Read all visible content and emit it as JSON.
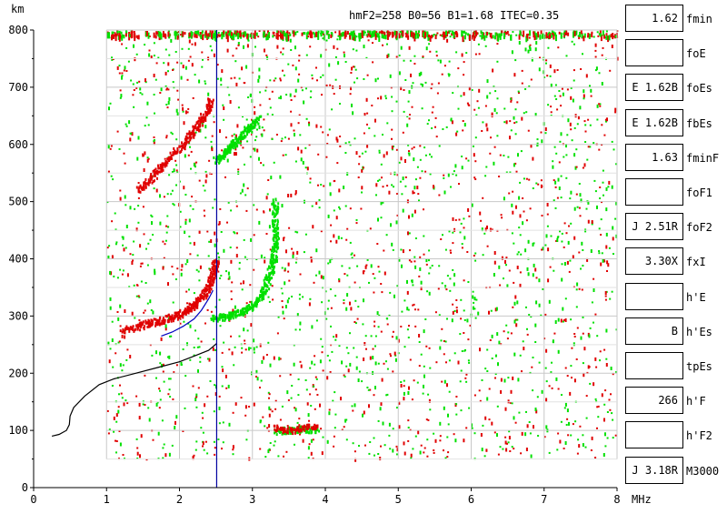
{
  "chart_data": {
    "type": "scatter",
    "title": "hmF2=258  B0=56  B1=1.68  ITEC=0.35",
    "xlabel": "MHz",
    "ylabel": "km",
    "xlim": [
      0,
      8
    ],
    "ylim": [
      0,
      800
    ],
    "x_ticks": [
      0,
      1,
      2,
      3,
      4,
      5,
      6,
      7,
      8
    ],
    "y_ticks": [
      0,
      100,
      200,
      300,
      400,
      500,
      600,
      700,
      800
    ],
    "grid": true,
    "marker_line_mhz": 2.51,
    "colors": {
      "o_trace": "#e00000",
      "x_trace": "#00e000",
      "profile": "#000000",
      "fit": "#0000c0",
      "marker": "#0000a0"
    },
    "series": [
      {
        "type": "line",
        "color": "#000000",
        "points": [
          [
            0.25,
            90
          ],
          [
            0.35,
            93
          ],
          [
            0.45,
            100
          ],
          [
            0.49,
            110
          ],
          [
            0.5,
            125
          ],
          [
            0.55,
            140
          ],
          [
            0.7,
            160
          ],
          [
            0.9,
            180
          ],
          [
            1.1,
            190
          ],
          [
            1.4,
            200
          ],
          [
            1.7,
            210
          ],
          [
            2.0,
            220
          ],
          [
            2.2,
            230
          ],
          [
            2.4,
            240
          ],
          [
            2.51,
            252
          ]
        ]
      },
      {
        "type": "line",
        "color": "#0000c0",
        "points": [
          [
            1.75,
            265
          ],
          [
            1.9,
            272
          ],
          [
            2.05,
            282
          ],
          [
            2.2,
            295
          ],
          [
            2.3,
            310
          ],
          [
            2.4,
            330
          ],
          [
            2.46,
            345
          ]
        ]
      },
      {
        "type": "trace",
        "color": "#e00000",
        "points": [
          [
            1.2,
            278
          ],
          [
            1.4,
            282
          ],
          [
            1.55,
            288
          ],
          [
            1.7,
            292
          ],
          [
            1.85,
            298
          ],
          [
            2.0,
            305
          ],
          [
            2.1,
            312
          ],
          [
            2.2,
            322
          ],
          [
            2.3,
            335
          ],
          [
            2.38,
            350
          ],
          [
            2.43,
            368
          ],
          [
            2.47,
            385
          ],
          [
            2.49,
            400
          ]
        ]
      },
      {
        "type": "trace",
        "color": "#e00000",
        "points": [
          [
            1.42,
            522
          ],
          [
            1.55,
            535
          ],
          [
            1.7,
            555
          ],
          [
            1.8,
            572
          ],
          [
            1.95,
            590
          ],
          [
            2.1,
            610
          ],
          [
            2.2,
            628
          ],
          [
            2.3,
            645
          ],
          [
            2.38,
            662
          ],
          [
            2.43,
            680
          ]
        ]
      },
      {
        "type": "trace",
        "color": "#00e000",
        "points": [
          [
            2.45,
            298
          ],
          [
            2.6,
            300
          ],
          [
            2.75,
            305
          ],
          [
            2.9,
            312
          ],
          [
            3.0,
            320
          ],
          [
            3.1,
            335
          ],
          [
            3.17,
            352
          ],
          [
            3.22,
            372
          ],
          [
            3.27,
            395
          ],
          [
            3.3,
            420
          ],
          [
            3.31,
            445
          ],
          [
            3.3,
            480
          ],
          [
            3.3,
            505
          ]
        ]
      },
      {
        "type": "trace",
        "color": "#00e000",
        "points": [
          [
            2.5,
            575
          ],
          [
            2.6,
            585
          ],
          [
            2.7,
            598
          ],
          [
            2.8,
            610
          ],
          [
            2.9,
            625
          ],
          [
            3.0,
            635
          ],
          [
            3.1,
            648
          ]
        ]
      },
      {
        "type": "trace",
        "color": "#00e000",
        "points": [
          [
            3.3,
            100
          ],
          [
            3.5,
            102
          ],
          [
            3.7,
            104
          ],
          [
            3.9,
            102
          ]
        ]
      },
      {
        "type": "trace",
        "color": "#e00000",
        "points": [
          [
            3.3,
            106
          ],
          [
            3.5,
            100
          ],
          [
            3.7,
            107
          ],
          [
            3.9,
            106
          ]
        ]
      }
    ]
  },
  "params": [
    {
      "value": "1.62",
      "name": "fmin"
    },
    {
      "value": "",
      "name": "foE"
    },
    {
      "value": "E 1.62B",
      "name": "foEs"
    },
    {
      "value": "E 1.62B",
      "name": "fbEs"
    },
    {
      "value": "1.63",
      "name": "fminF"
    },
    {
      "value": "",
      "name": "foF1"
    },
    {
      "value": "J 2.51R",
      "name": "foF2"
    },
    {
      "value": "3.30X",
      "name": "fxI"
    },
    {
      "value": "",
      "name": "h'E"
    },
    {
      "value": "B",
      "name": "h'Es"
    },
    {
      "value": "",
      "name": "tpEs"
    },
    {
      "value": "266",
      "name": "h'F"
    },
    {
      "value": "",
      "name": "h'F2"
    },
    {
      "value": "J 3.18R",
      "name": "M3000"
    }
  ]
}
